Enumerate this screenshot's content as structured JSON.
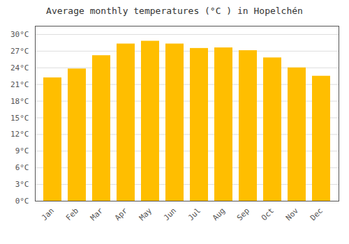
{
  "chart_data": {
    "type": "bar",
    "title": "Average monthly temperatures (°C ) in Hopelchén",
    "categories": [
      "Jan",
      "Feb",
      "Mar",
      "Apr",
      "May",
      "Jun",
      "Jul",
      "Aug",
      "Sep",
      "Oct",
      "Nov",
      "Dec"
    ],
    "values": [
      22.2,
      23.8,
      26.2,
      28.3,
      28.8,
      28.3,
      27.5,
      27.6,
      27.1,
      25.8,
      24.0,
      22.5
    ],
    "color": "#FFBE00",
    "ylim": [
      0,
      31.5
    ],
    "yticks": [
      {
        "value": 0,
        "label": "0°C"
      },
      {
        "value": 3,
        "label": "3°C"
      },
      {
        "value": 6,
        "label": "6°C"
      },
      {
        "value": 9,
        "label": "9°C"
      },
      {
        "value": 12,
        "label": "12°C"
      },
      {
        "value": 15,
        "label": "15°C"
      },
      {
        "value": 18,
        "label": "18°C"
      },
      {
        "value": 21,
        "label": "21°C"
      },
      {
        "value": 24,
        "label": "24°C"
      },
      {
        "value": 27,
        "label": "27°C"
      },
      {
        "value": 30,
        "label": "30°C"
      }
    ],
    "grid": true
  }
}
